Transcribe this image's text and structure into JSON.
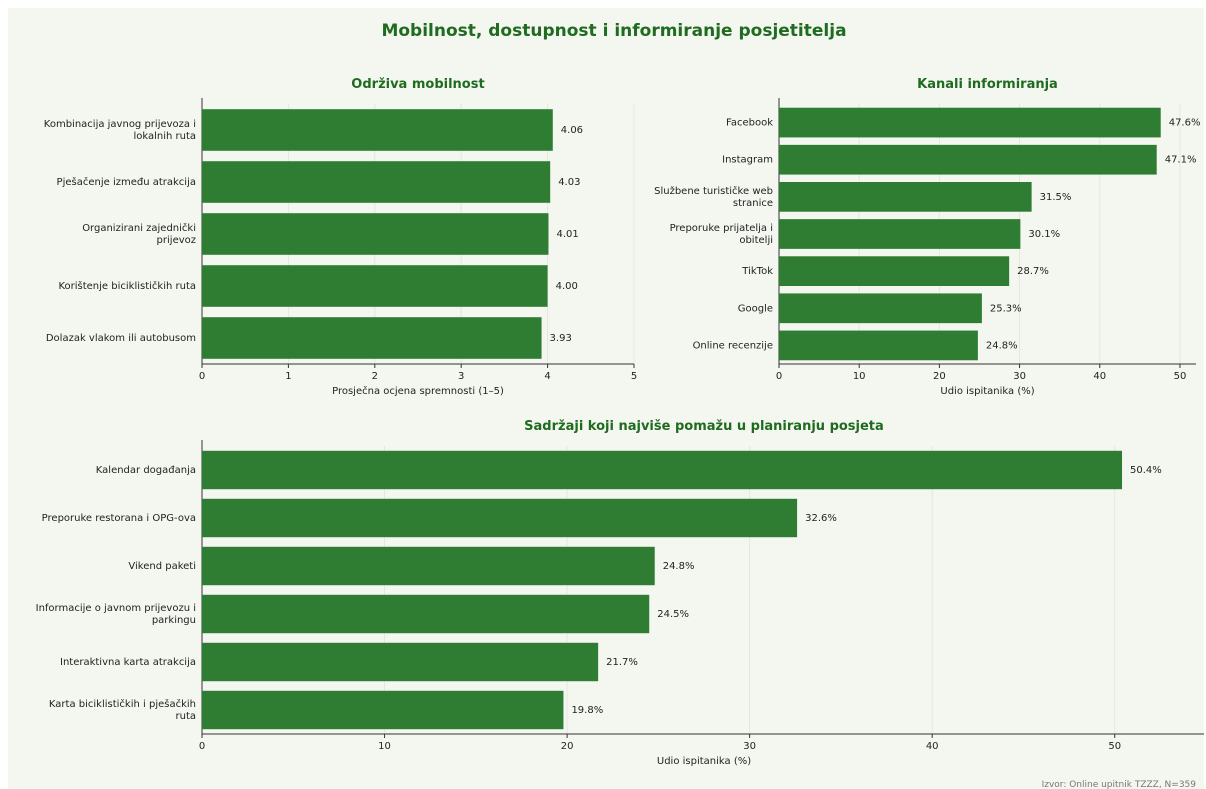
{
  "figure": {
    "title": "Mobilnost, dostupnost i informiranje posjetitelja",
    "source": "Izvor: Online upitnik TZZZ, N=359"
  },
  "colors": {
    "bar": "#2e7d32",
    "title": "#1f6b1f",
    "grid": "#e3e8dc",
    "background": "#f4f7f0"
  },
  "chart_data": [
    {
      "type": "bar",
      "orientation": "horizontal",
      "title": "Održiva mobilnost",
      "xlabel": "Prosječna ocjena spremnosti (1–5)",
      "xlim": [
        0,
        5
      ],
      "ticks": [
        "0",
        "1",
        "2",
        "3",
        "4",
        "5"
      ],
      "grid": true,
      "categories": [
        "Kombinacija javnog prijevoza i lokalnih ruta",
        "Pješačenje između atrakcija",
        "Organizirani zajednički prijevoz",
        "Korištenje biciklističkih ruta",
        "Dolazak vlakom ili autobusom"
      ],
      "values": [
        4.06,
        4.03,
        4.01,
        4.0,
        3.93
      ],
      "value_labels": [
        "4.06",
        "4.03",
        "4.01",
        "4.00",
        "3.93"
      ]
    },
    {
      "type": "bar",
      "orientation": "horizontal",
      "title": "Kanali informiranja",
      "xlabel": "Udio ispitanika (%)",
      "xlim": [
        0,
        52
      ],
      "ticks": [
        "0",
        "10",
        "20",
        "30",
        "40",
        "50"
      ],
      "grid": true,
      "categories": [
        "Facebook",
        "Instagram",
        "Službene turističke web stranice",
        "Preporuke prijatelja i obitelji",
        "TikTok",
        "Google",
        "Online recenzije"
      ],
      "values": [
        47.6,
        47.1,
        31.5,
        30.1,
        28.7,
        25.3,
        24.8
      ],
      "value_labels": [
        "47.6%",
        "47.1%",
        "31.5%",
        "30.1%",
        "28.7%",
        "25.3%",
        "24.8%"
      ]
    },
    {
      "type": "bar",
      "orientation": "horizontal",
      "title": "Sadržaji koji najviše pomažu u planiranju posjeta",
      "xlabel": "Udio ispitanika (%)",
      "xlim": [
        0,
        55
      ],
      "ticks": [
        "0",
        "10",
        "20",
        "30",
        "40",
        "50"
      ],
      "grid": true,
      "categories": [
        "Kalendar događanja",
        "Preporuke restorana i OPG-ova",
        "Vikend paketi",
        "Informacije o javnom prijevozu i parkingu",
        "Interaktivna karta atrakcija",
        "Karta biciklističkih i pješačkih ruta"
      ],
      "values": [
        50.4,
        32.6,
        24.8,
        24.5,
        21.7,
        19.8
      ],
      "value_labels": [
        "50.4%",
        "32.6%",
        "24.8%",
        "24.5%",
        "21.7%",
        "19.8%"
      ]
    }
  ]
}
